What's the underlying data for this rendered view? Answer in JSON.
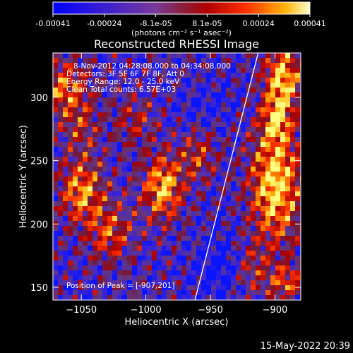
{
  "colorbar": {
    "tick_labels": [
      "-0.00041",
      "-0.00024",
      "-8.1e-05",
      "8.1e-05",
      "0.00024",
      "0.00041"
    ],
    "units": "(photons cm⁻² s⁻¹ asec⁻²)",
    "range": [
      -0.00041,
      0.00041
    ]
  },
  "chart_data": {
    "type": "heatmap",
    "title": "Reconstructed RHESSI Image",
    "xlabel": "Heliocentric X (arcsec)",
    "ylabel": "Heliocentric Y (arcsec)",
    "xlim": [
      -1072,
      -880
    ],
    "ylim": [
      140,
      335
    ],
    "x_ticks": [
      -1050,
      -1000,
      -950,
      -900
    ],
    "x_tick_labels": [
      "−1050",
      "−1000",
      "−950",
      "−900"
    ],
    "y_ticks": [
      150,
      200,
      250,
      300
    ],
    "y_tick_labels": [
      "150",
      "200",
      "250",
      "300"
    ],
    "annotations": [
      "8-Nov-2012 04:28:08.000 to 04:34:08.000",
      "Detectors: 3F 5F 6F 7F 8F, Att 0",
      "Energy Range: 12.0 - 25.0 keV",
      "Clean     Total counts: 6.57E+03"
    ],
    "peak_label": "Position of Peak = [-907,201]",
    "peak_position": [
      -907,
      201
    ],
    "limb_line": [
      [
        -962,
        140
      ],
      [
        -913,
        335
      ]
    ],
    "colors": {
      "low": "#0000ff",
      "mid_low": "#6a3a9a",
      "mid": "#c00000",
      "high": "#ffff60",
      "limb": "#ffffff"
    }
  },
  "footer": {
    "timestamp": "15-May-2022 20:39"
  }
}
